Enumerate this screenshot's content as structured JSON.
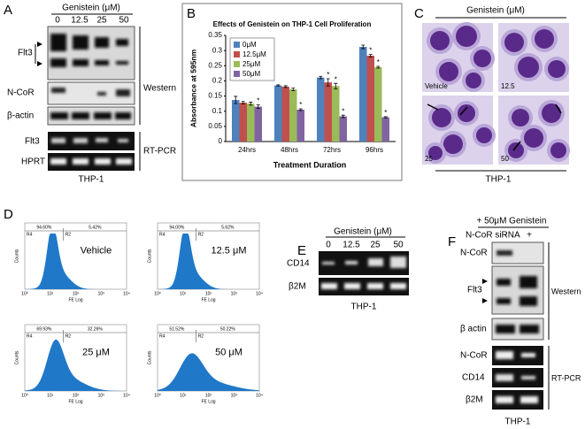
{
  "panel_a": {
    "label": "A",
    "genistein": "Genistein (μM)",
    "lanes": [
      "0",
      "12.5",
      "25",
      "50"
    ],
    "rows": [
      "Flt3",
      "N-CoR",
      "β-actin",
      "Flt3",
      "HPRT"
    ],
    "western": "Western",
    "rtpcr": "RT-PCR",
    "cell_line": "THP-1"
  },
  "chart_data": {
    "type": "bar",
    "panel_label": "B",
    "title": "Effects of Genistein on THP-1 Cell Proliferation",
    "y_label": "Absorbance at 595nm",
    "x_label": "Treatment Duration",
    "categories": [
      "24hrs",
      "48hrs",
      "72hrs",
      "96hrs"
    ],
    "series": [
      {
        "name": "0μM",
        "color": "#4f81bd",
        "values": [
          0.137,
          0.185,
          0.211,
          0.312
        ],
        "errors": [
          0.012,
          0.002,
          0.004,
          0.006
        ],
        "significance": [
          null,
          null,
          null,
          null
        ]
      },
      {
        "name": "12.5μM",
        "color": "#c0504d",
        "values": [
          0.128,
          0.181,
          0.195,
          0.283
        ],
        "errors": [
          0.004,
          0.003,
          0.012,
          0.004
        ],
        "significance": [
          null,
          null,
          "*",
          "*"
        ]
      },
      {
        "name": "25μM",
        "color": "#9bbb59",
        "values": [
          0.125,
          0.172,
          0.183,
          0.245
        ],
        "errors": [
          0.005,
          0.004,
          0.009,
          0.003
        ],
        "significance": [
          null,
          null,
          "*",
          "*"
        ]
      },
      {
        "name": "50μM",
        "color": "#8064a2",
        "values": [
          0.115,
          0.105,
          0.083,
          0.08
        ],
        "errors": [
          0.006,
          0.003,
          0.004,
          0.002
        ],
        "significance": [
          "*",
          "*",
          "*",
          "*"
        ]
      }
    ],
    "ylim": [
      0,
      0.35
    ],
    "yticks": [
      0,
      0.05,
      0.1,
      0.15,
      0.2,
      0.25,
      0.3,
      0.35
    ],
    "grid": false
  },
  "panel_c": {
    "label": "C",
    "genistein": "Genistein (μM)",
    "images": [
      "Vehicle",
      "12.5",
      "25",
      "50"
    ],
    "cell_line": "THP-1"
  },
  "panel_d": {
    "label": "D",
    "y_axis": "Counts",
    "x_axis": "FE Log",
    "x_ticks": [
      "10⁰",
      "10¹",
      "10²",
      "10³",
      "10⁴"
    ],
    "plots": [
      {
        "condition": "Vehicle",
        "left_gate": "R4",
        "right_gate": "R2",
        "left_pct": "94.60%",
        "right_pct": "5.42%"
      },
      {
        "condition": "12.5 μM",
        "left_gate": "R4",
        "right_gate": "R2",
        "left_pct": "94.00%",
        "right_pct": "5.62%"
      },
      {
        "condition": "25 μM",
        "left_gate": "R4",
        "right_gate": "R2",
        "left_pct": "69.93%",
        "right_pct": "32.26%"
      },
      {
        "condition": "50 μM",
        "left_gate": "R4",
        "right_gate": "R2",
        "left_pct": "51.52%",
        "right_pct": "50.22%"
      }
    ]
  },
  "panel_e": {
    "label": "E",
    "genistein": "Genistein (μM)",
    "lanes": [
      "0",
      "12.5",
      "25",
      "50"
    ],
    "rows": [
      "CD14",
      "β2M"
    ],
    "cell_line": "THP-1"
  },
  "panel_f": {
    "label": "F",
    "treatment": "+ 50μM Genistein",
    "sirna": "N-CoR siRNA",
    "lanes": [
      "-",
      "+"
    ],
    "rows": [
      "N-CoR",
      "Flt3",
      "β actin",
      "N-CoR",
      "CD14",
      "β2M"
    ],
    "western": "Western",
    "rtpcr": "RT-PCR",
    "cell_line": "THP-1"
  }
}
